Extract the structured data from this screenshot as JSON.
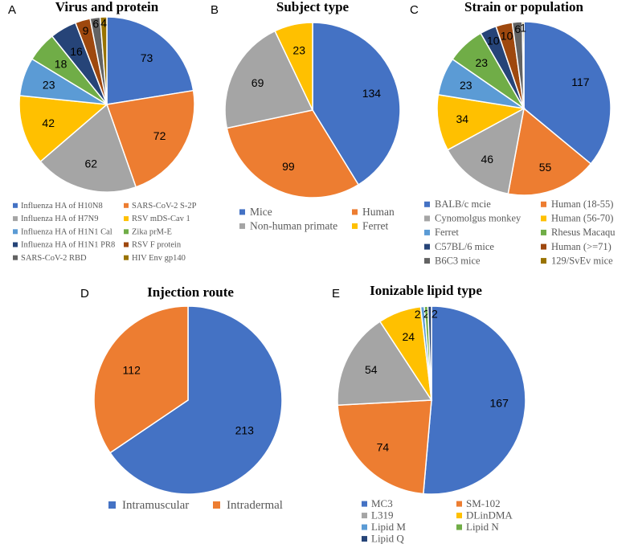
{
  "figure": {
    "colors": {
      "blue": "#4472C4",
      "orange": "#ED7D31",
      "gray": "#A5A5A5",
      "gold": "#FFC000",
      "lightblue": "#5B9BD5",
      "green": "#70AD47",
      "navy": "#264478",
      "brown": "#9E480E",
      "darkgray": "#636363",
      "olive": "#997300"
    }
  },
  "chart_data": [
    {
      "id": "A",
      "letter": "A",
      "type": "pie",
      "title": "Virus and protein",
      "labels": [
        "Influenza HA of H10N8",
        "SARS-CoV-2 S-2P",
        "Influenza HA of H7N9",
        "RSV mDS-Cav 1",
        "Influenza HA of H1N1 Cal",
        "Zika prM-E",
        "Influenza HA of H1N1 PR8",
        "RSV F protein",
        "SARS-CoV-2 RBD",
        "HIV Env gp140"
      ],
      "values": [
        73,
        72,
        62,
        42,
        23,
        18,
        16,
        9,
        6,
        4
      ],
      "colors": [
        "#4472C4",
        "#ED7D31",
        "#A5A5A5",
        "#FFC000",
        "#5B9BD5",
        "#70AD47",
        "#264478",
        "#9E480E",
        "#636363",
        "#997300"
      ]
    },
    {
      "id": "B",
      "letter": "B",
      "type": "pie",
      "title": "Subject type",
      "labels": [
        "Mice",
        "Human",
        "Non-human primate",
        "Ferret"
      ],
      "values": [
        134,
        99,
        69,
        23
      ],
      "colors": [
        "#4472C4",
        "#ED7D31",
        "#A5A5A5",
        "#FFC000"
      ]
    },
    {
      "id": "C",
      "letter": "C",
      "type": "pie",
      "title": "Strain or population",
      "labels": [
        "BALB/c mcie",
        "Human (18-55)",
        "Cynomolgus monkey",
        "Human (56-70)",
        "Ferret",
        "Rhesus Macaqu",
        "C57BL/6 mice",
        "Human (>=71)",
        "B6C3 mice",
        "129/SvEv mice"
      ],
      "values": [
        117,
        55,
        46,
        34,
        23,
        23,
        10,
        10,
        6,
        1
      ],
      "colors": [
        "#4472C4",
        "#ED7D31",
        "#A5A5A5",
        "#FFC000",
        "#5B9BD5",
        "#70AD47",
        "#264478",
        "#9E480E",
        "#636363",
        "#997300"
      ]
    },
    {
      "id": "D",
      "letter": "D",
      "type": "pie",
      "title": "Injection route",
      "labels": [
        "Intramuscular",
        "Intradermal"
      ],
      "values": [
        213,
        112
      ],
      "colors": [
        "#4472C4",
        "#ED7D31"
      ]
    },
    {
      "id": "E",
      "letter": "E",
      "type": "pie",
      "title": "Ionizable lipid type",
      "labels": [
        "MC3",
        "SM-102",
        "L319",
        "DLinDMA",
        "Lipid M",
        "Lipid N",
        "Lipid Q"
      ],
      "values": [
        167,
        74,
        54,
        24,
        2,
        2,
        2
      ],
      "colors": [
        "#4472C4",
        "#ED7D31",
        "#A5A5A5",
        "#FFC000",
        "#5B9BD5",
        "#70AD47",
        "#264478"
      ]
    }
  ]
}
